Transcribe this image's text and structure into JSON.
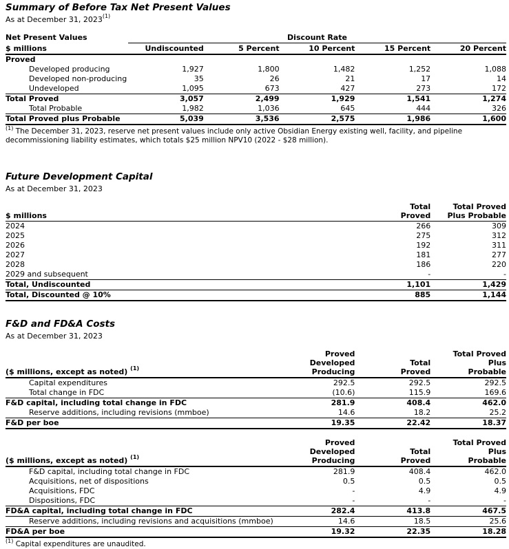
{
  "npv": {
    "title": "Summary of Before Tax Net Present Values",
    "subtitle": "As at December 31, 2023",
    "subtitle_sup": "(1)",
    "left_header_top": "Net Present Values",
    "left_header_bottom": "$ millions",
    "group_header": "Discount Rate",
    "columns": [
      "Undiscounted",
      "5 Percent",
      "10 Percent",
      "15 Percent",
      "20 Percent"
    ],
    "rows": [
      {
        "label": "Proved",
        "bold": true,
        "values": [
          "",
          "",
          "",
          "",
          ""
        ]
      },
      {
        "label": "Developed producing",
        "indent": true,
        "values": [
          "1,927",
          "1,800",
          "1,482",
          "1,252",
          "1,088"
        ]
      },
      {
        "label": "Developed non-producing",
        "indent": true,
        "values": [
          "35",
          "26",
          "21",
          "17",
          "14"
        ]
      },
      {
        "label": "Undeveloped",
        "indent": true,
        "values": [
          "1,095",
          "673",
          "427",
          "273",
          "172"
        ],
        "border": "thin"
      },
      {
        "label": "Total Proved",
        "bold": true,
        "values": [
          "3,057",
          "2,499",
          "1,929",
          "1,541",
          "1,274"
        ]
      },
      {
        "label": "Total Probable",
        "indent": true,
        "values": [
          "1,982",
          "1,036",
          "645",
          "444",
          "326"
        ],
        "border": "thin"
      },
      {
        "label": "Total Proved plus Probable",
        "bold": true,
        "values": [
          "5,039",
          "3,536",
          "2,575",
          "1,986",
          "1,600"
        ],
        "border": "thick"
      }
    ],
    "footnote_sup": "(1)",
    "footnote": "The December 31, 2023, reserve net present values include only active Obsidian Energy existing well, facility, and pipeline decommissioning liability estimates, which totals $25 million NPV10 (2022 - $28 million)."
  },
  "fdc": {
    "title": "Future Development Capital",
    "subtitle": "As at December 31, 2023",
    "left_header": "$ millions",
    "columns": [
      "Total\nProved",
      "Total Proved\nPlus Probable"
    ],
    "rows": [
      {
        "label": "2024",
        "values": [
          "266",
          "309"
        ]
      },
      {
        "label": "2025",
        "values": [
          "275",
          "312"
        ]
      },
      {
        "label": "2026",
        "values": [
          "192",
          "311"
        ]
      },
      {
        "label": "2027",
        "values": [
          "181",
          "277"
        ]
      },
      {
        "label": "2028",
        "values": [
          "186",
          "220"
        ]
      },
      {
        "label": "2029 and subsequent",
        "values": [
          "-",
          "-"
        ],
        "border": "thin"
      },
      {
        "label": "Total, Undiscounted",
        "bold": true,
        "values": [
          "1,101",
          "1,429"
        ],
        "border": "thin"
      },
      {
        "label": "Total, Discounted @ 10%",
        "bold": true,
        "values": [
          "885",
          "1,144"
        ],
        "border": "thick"
      }
    ]
  },
  "fd": {
    "title": "F&D and FD&A Costs",
    "subtitle": "As at December 31, 2023",
    "left_header": "($ millions, except as noted)",
    "left_header_sup": "(1)",
    "columns": [
      "Proved\nDeveloped\nProducing",
      "Total\nProved",
      "Total Proved\nPlus\nProbable"
    ],
    "fd_rows": [
      {
        "label": "Capital expenditures",
        "indent": true,
        "values": [
          "292.5",
          "292.5",
          "292.5"
        ]
      },
      {
        "label": "Total change in FDC",
        "indent": true,
        "values": [
          "(10.6)",
          "115.9",
          "169.6"
        ],
        "border": "thin"
      },
      {
        "label": "F&D capital, including total change in FDC",
        "bold": true,
        "values": [
          "281.9",
          "408.4",
          "462.0"
        ]
      },
      {
        "label": "Reserve additions, including revisions (mmboe)",
        "indent": true,
        "values": [
          "14.6",
          "18.2",
          "25.2"
        ],
        "border": "thin"
      },
      {
        "label": "F&D per boe",
        "bold": true,
        "values": [
          "19.35",
          "22.42",
          "18.37"
        ],
        "border": "thick"
      }
    ],
    "fda_rows": [
      {
        "label": "F&D capital, including total change in FDC",
        "indent": true,
        "values": [
          "281.9",
          "408.4",
          "462.0"
        ]
      },
      {
        "label": "Acquisitions, net of dispositions",
        "indent": true,
        "values": [
          "0.5",
          "0.5",
          "0.5"
        ]
      },
      {
        "label": "Acquisitions, FDC",
        "indent": true,
        "values": [
          "-",
          "4.9",
          "4.9"
        ]
      },
      {
        "label": "Dispositions, FDC",
        "indent": true,
        "values": [
          "-",
          "-",
          "-"
        ],
        "border": "thin"
      },
      {
        "label": "FD&A capital, including total change in FDC",
        "bold": true,
        "values": [
          "282.4",
          "413.8",
          "467.5"
        ],
        "border": "thin"
      },
      {
        "label": "Reserve additions, including revisions and acquisitions (mmboe)",
        "indent": true,
        "values": [
          "14.6",
          "18.5",
          "25.6"
        ],
        "border": "thin"
      },
      {
        "label": "FD&A per boe",
        "bold": true,
        "values": [
          "19.32",
          "22.35",
          "18.28"
        ],
        "border": "thick"
      }
    ],
    "footnote_sup": "(1)",
    "footnote": "Capital expenditures are unaudited."
  }
}
